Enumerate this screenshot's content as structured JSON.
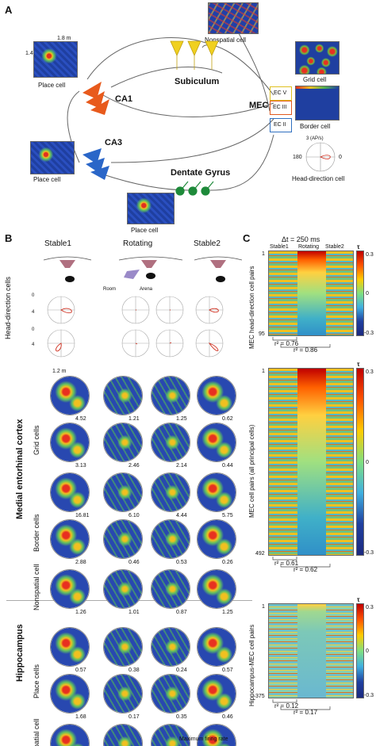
{
  "panels": {
    "A": "A",
    "B": "B",
    "C": "C"
  },
  "panelA": {
    "dim_w": "1.8 m",
    "dim_h": "1.4 m",
    "place_cell_1": "Place cell",
    "place_cell_2": "Place cell",
    "place_cell_3": "Place cell",
    "nonspatial_cell": "Nonspatial cell",
    "subiculum": "Subiculum",
    "ca1": "CA1",
    "ca3": "CA3",
    "mec": "MEC",
    "ec_v": "EC V",
    "ec_iii": "EC III",
    "ec_ii": "EC II",
    "grid_cell": "Grid cell",
    "border_cell": "Border cell",
    "dentate_gyrus": "Dentate Gyrus",
    "hd_scale": "3 (AP/s)",
    "hd_180": "180",
    "hd_0": "0",
    "head_direction_cell": "Head-direction cell"
  },
  "panelB": {
    "columns": [
      "Stable1",
      "Rotating",
      "Stable2"
    ],
    "room": "Room",
    "arena": "Arena",
    "hd_label": "Head-direction cells",
    "hd_ticks": [
      "0",
      "4",
      "0",
      "4"
    ],
    "scale": "1.2 m",
    "mec_label": "Medial entorhinal cortex",
    "hippo_label": "Hippocampus",
    "groups": [
      {
        "label": "Grid cells",
        "rows": [
          [
            "4.52",
            "1.21",
            "1.25",
            "0.62"
          ],
          [
            "3.13",
            "2.46",
            "2.14",
            "0.44"
          ]
        ]
      },
      {
        "label": "Border cells",
        "rows": [
          [
            "16.81",
            "6.10",
            "4.44",
            "5.75"
          ],
          [
            "2.88",
            "0.46",
            "0.53",
            "0.26"
          ]
        ]
      },
      {
        "label": "Nonspatial cell",
        "rows": [
          [
            "1.26",
            "1.01",
            "0.87",
            "1.25"
          ]
        ]
      },
      {
        "label": "Place cells",
        "rows": [
          [
            "0.57",
            "0.38",
            "0.24",
            "0.57"
          ],
          [
            "1.68",
            "0.17",
            "0.35",
            "0.46"
          ]
        ]
      },
      {
        "label": "Nonspatial cell",
        "rows": [
          [
            "1.07",
            "1.19",
            "1.25",
            "1.02"
          ]
        ]
      }
    ],
    "max_rate_label": "Maximum firing rate"
  },
  "panelC": {
    "dt": "Δt = 250 ms",
    "columns": [
      "Stable1",
      "Rotating",
      "Stable2"
    ],
    "tau": "τ",
    "plots": [
      {
        "ylabel": "MEC head-direction cell pairs",
        "n_top": "1",
        "n_bottom": "95",
        "r1": "r² = 0.76",
        "r2": "r² = 0.86",
        "cb_top": "0.3",
        "cb_mid": "0",
        "cb_bot": "-0.3"
      },
      {
        "ylabel": "MEC cell pairs (all principal cells)",
        "n_top": "1",
        "n_bottom": "492",
        "r1": "r² = 0.61",
        "r2": "r² = 0.62",
        "cb_top": "0.3",
        "cb_mid": "0",
        "cb_bot": "-0.3"
      },
      {
        "ylabel": "Hippocampus-MEC cell pairs",
        "n_top": "1",
        "n_bottom": "375",
        "r1": "r² = 0.12",
        "r2": "r² = 0.17",
        "cb_top": "0.3",
        "cb_mid": "0",
        "cb_bot": "-0.3"
      }
    ]
  },
  "colors": {
    "ca1": "#e85a1c",
    "ca3": "#2a66c8",
    "subiculum": "#f0d020",
    "dentate": "#1e8a3a",
    "ec_v": "#e0c020",
    "ec_iii": "#e05a20",
    "ec_ii": "#3070c0"
  }
}
